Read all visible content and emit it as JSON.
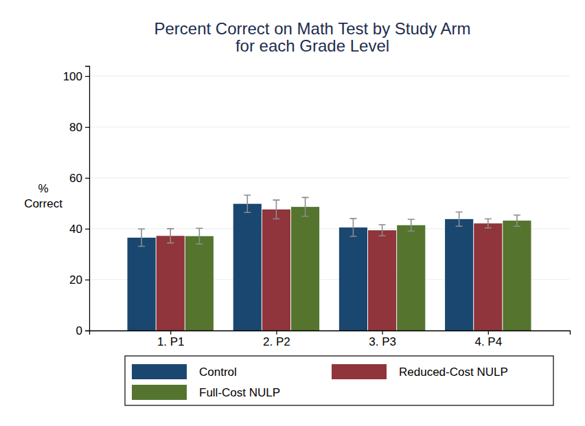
{
  "chart_data": {
    "type": "bar",
    "title": [
      "Percent Correct on Math Test by Study Arm",
      "for each Grade Level"
    ],
    "y_label": [
      "%",
      "Correct"
    ],
    "categories": [
      "1. P1",
      "2. P2",
      "3. P3",
      "4. P4"
    ],
    "series": [
      {
        "name": "Control",
        "color": "#1a476f",
        "values": [
          36.5,
          49.8,
          40.5,
          43.8
        ],
        "errors": [
          3.4,
          3.4,
          3.5,
          2.8
        ]
      },
      {
        "name": "Reduced-Cost NULP",
        "color": "#90353b",
        "values": [
          37.2,
          47.6,
          39.4,
          42.1
        ],
        "errors": [
          2.8,
          3.7,
          2.2,
          1.8
        ]
      },
      {
        "name": "Full-Cost NULP",
        "color": "#55752f",
        "values": [
          37.1,
          48.6,
          41.4,
          43.2
        ],
        "errors": [
          3.1,
          3.7,
          2.3,
          2.2
        ]
      }
    ],
    "ylim": [
      0,
      104
    ],
    "yticks": [
      0,
      20,
      40,
      60,
      80,
      100
    ],
    "grid": true,
    "legend": "bottom"
  }
}
